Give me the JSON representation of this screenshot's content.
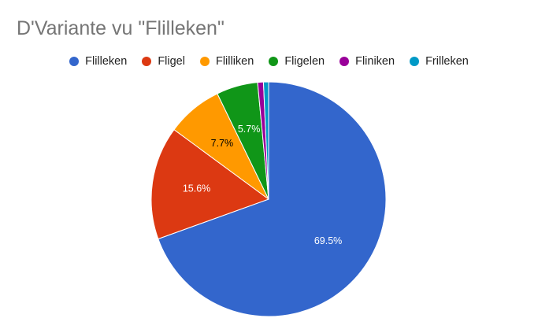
{
  "chart_data": {
    "type": "pie",
    "title": "D'Variante vu \"Flilleken\"",
    "categories": [
      "Flilleken",
      "Fligel",
      "Flilliken",
      "Fligelen",
      "Fliniken",
      "Frilleken"
    ],
    "values": [
      69.5,
      15.6,
      7.7,
      5.7,
      0.8,
      0.7
    ],
    "data_labels": [
      "69.5%",
      "15.6%",
      "7.7%",
      "5.7%",
      "",
      ""
    ],
    "colors": [
      "#3366cc",
      "#dc3912",
      "#ff9900",
      "#109618",
      "#990099",
      "#0099c6"
    ],
    "label_colors": [
      "#ffffff",
      "#ffffff",
      "#000000",
      "#ffffff",
      "",
      ""
    ],
    "legend_position": "top",
    "start_angle": "12 o'clock, clockwise"
  }
}
